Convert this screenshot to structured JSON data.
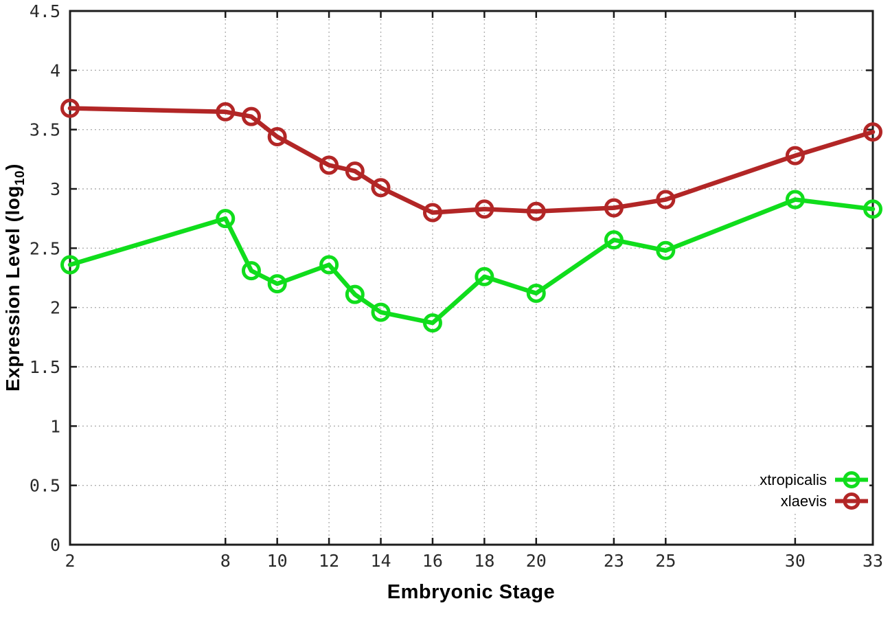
{
  "chart_data": {
    "type": "line",
    "title": "",
    "xlabel": "Embryonic Stage",
    "ylabel": "Expression Level (log10)",
    "ylabel_prefix": "Expression Level (log",
    "ylabel_sub": "10",
    "ylabel_suffix": ")",
    "x": [
      2,
      8,
      9,
      10,
      12,
      13,
      14,
      16,
      18,
      20,
      23,
      25,
      30,
      33
    ],
    "series": [
      {
        "name": "xtropicalis",
        "color": "#10dd1c",
        "values": [
          2.36,
          2.75,
          2.31,
          2.2,
          2.36,
          2.11,
          1.96,
          1.87,
          2.26,
          2.12,
          2.57,
          2.48,
          2.91,
          2.83
        ]
      },
      {
        "name": "xlaevis",
        "color": "#b22626",
        "values": [
          3.68,
          3.65,
          3.61,
          3.44,
          3.2,
          3.15,
          3.01,
          2.8,
          2.83,
          2.81,
          2.84,
          2.91,
          3.28,
          3.48
        ]
      }
    ],
    "xlim": [
      2,
      33
    ],
    "ylim": [
      0,
      4.5
    ],
    "x_ticks": [
      2,
      8,
      10,
      12,
      14,
      16,
      18,
      20,
      23,
      25,
      30,
      33
    ],
    "x_tick_labels": [
      "2",
      "8",
      "10",
      "12",
      "14",
      "16",
      "18",
      "20",
      "23",
      "25",
      "30",
      "33"
    ],
    "y_ticks": [
      0,
      0.5,
      1,
      1.5,
      2,
      2.5,
      3,
      3.5,
      4,
      4.5
    ],
    "y_tick_labels": [
      "0",
      "0.5",
      "1",
      "1.5",
      "2",
      "2.5",
      "3",
      "3.5",
      "4",
      "4.5"
    ],
    "grid": true,
    "grid_style": "dotted",
    "marker": "open-circle",
    "legend_position": "bottom-right",
    "colors": {
      "background": "#ffffff",
      "axis": "#1c1c1c",
      "grid": "#a6a6a6",
      "tick_text": "#2a2a2a"
    }
  }
}
